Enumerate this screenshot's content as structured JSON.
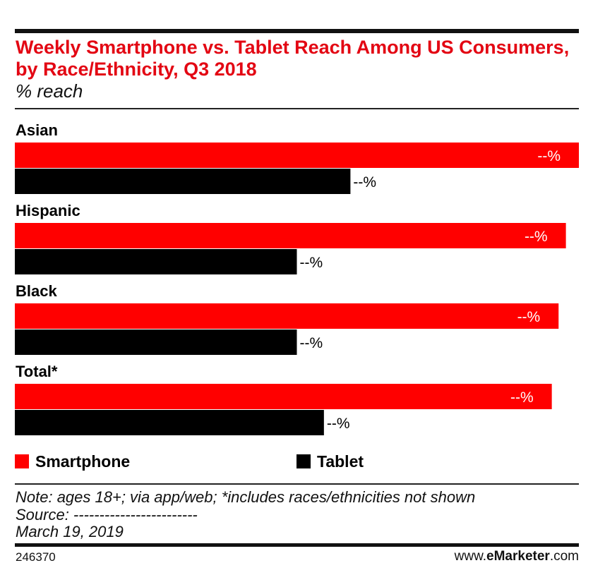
{
  "header": {
    "title": "Weekly Smartphone vs. Tablet Reach Among US Consumers, by Race/Ethnicity, Q3 2018",
    "subtitle": "% reach"
  },
  "chart_data": {
    "type": "bar",
    "orientation": "horizontal",
    "categories": [
      "Asian",
      "Hispanic",
      "Black",
      "Total*"
    ],
    "series": [
      {
        "name": "Smartphone",
        "color": "#ff0000",
        "values": [
          100,
          97.7,
          96.4,
          95.2
        ],
        "labels": [
          "--%",
          "--%",
          "--%",
          "--%"
        ]
      },
      {
        "name": "Tablet",
        "color": "#000000",
        "values": [
          59.5,
          50,
          50,
          54.8
        ],
        "labels": [
          "--%",
          "--%",
          "--%",
          "--%"
        ]
      }
    ],
    "xlim": [
      0,
      100
    ],
    "grid": false,
    "legend_position": "bottom"
  },
  "legend": {
    "smartphone": {
      "label": "Smartphone",
      "color": "#ff0000"
    },
    "tablet": {
      "label": "Tablet",
      "color": "#000000"
    }
  },
  "footer": {
    "note": "Note: ages 18+; via app/web; *includes races/ethnicities not shown",
    "source": "Source: ------------------------",
    "date": "March 19, 2019",
    "chart_id": "246370",
    "brand_prefix": "www.",
    "brand_bold": "eMarketer",
    "brand_suffix": ".com"
  }
}
